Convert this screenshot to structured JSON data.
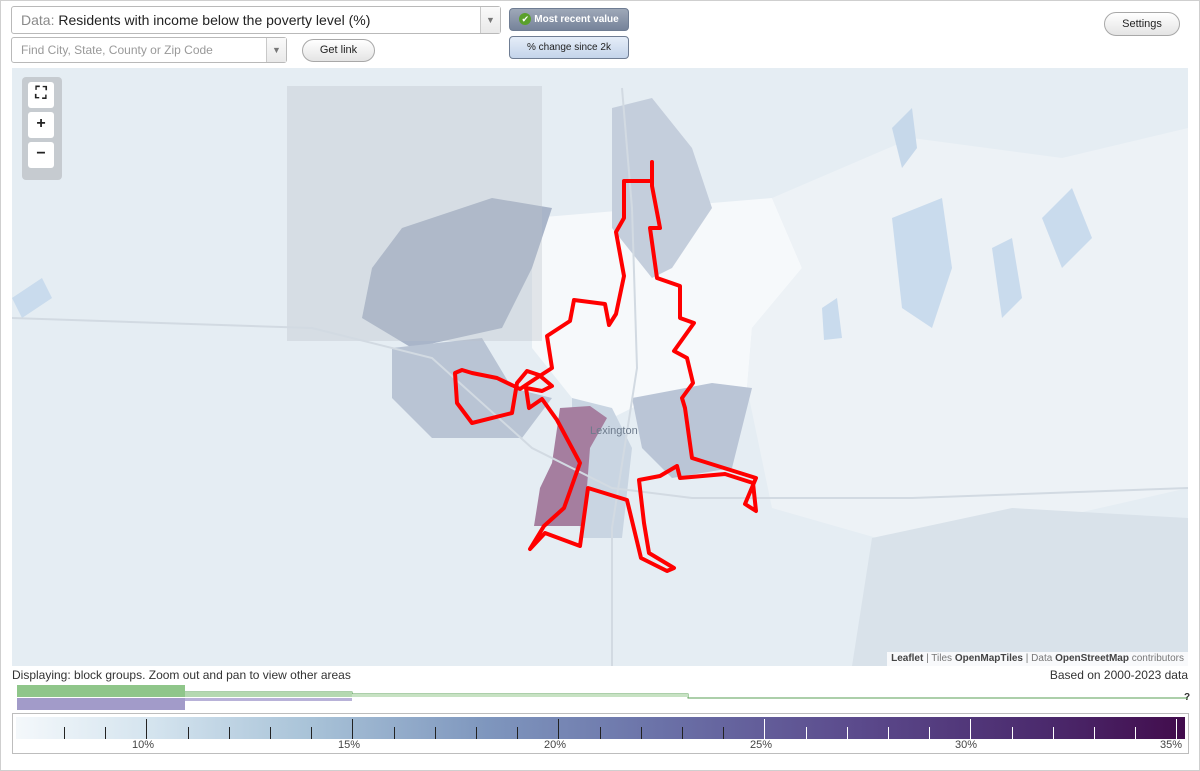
{
  "data_select": {
    "prefix": "Data:",
    "value": "Residents with income below the poverty level (%)"
  },
  "search": {
    "placeholder": "Find City, State, County or Zip Code"
  },
  "buttons": {
    "get_link": "Get link",
    "settings": "Settings"
  },
  "toggles": {
    "recent": "Most recent value",
    "change": "% change since 2k",
    "recent_checked": true
  },
  "map": {
    "city_label": "Lexington",
    "zoom_in": "+",
    "zoom_out": "−",
    "highlight_color": "#ff0000",
    "attribution": {
      "leaflet": "Leaflet",
      "sep1": " | Tiles ",
      "tiles": "OpenMapTiles",
      "sep2": " | Data ",
      "data": "OpenStreetMap",
      "tail": " contributors"
    }
  },
  "notes": {
    "displaying": "Displaying: block groups. Zoom out and pan to view other areas",
    "based_on": "Based on 2000-2023 data"
  },
  "histogram": {
    "question_mark": "?",
    "green": "#8fc68a",
    "purple": "#a29bc9"
  },
  "legend": {
    "ticks": [
      "10%",
      "15%",
      "20%",
      "25%",
      "30%",
      "35%"
    ],
    "colors": {
      "low": "#f4f8fb",
      "mid": "#7f97be",
      "high": "#420c4c"
    }
  }
}
